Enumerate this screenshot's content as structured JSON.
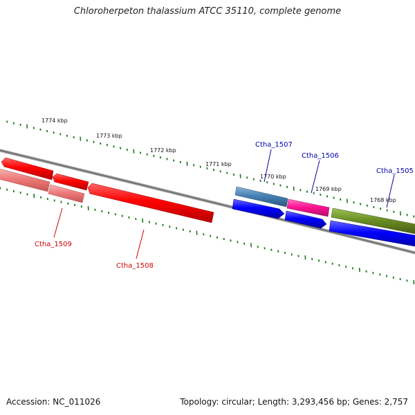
{
  "title": "Chloroherpeton thalassium ATCC 35110, complete genome",
  "footer": {
    "accession": "Accession: NC_011026",
    "summary": "Topology: circular; Length: 3,293,456 bp; Genes: 2,757"
  },
  "colors": {
    "backbone": "#808080",
    "ticks": "#1a7a1a",
    "red_label": "#cc0000",
    "blue_label": "#0000aa"
  },
  "tick_labels": [
    "1774 kbp",
    "1773 kbp",
    "1772 kbp",
    "1771 kbp",
    "1770 kbp",
    "1769 kbp",
    "1768 kbp"
  ],
  "genes": [
    {
      "name": "Ctha_1509",
      "color": "#cc0000"
    },
    {
      "name": "Ctha_1508",
      "color": "#cc0000"
    },
    {
      "name": "Ctha_1507",
      "color": "#0000aa"
    },
    {
      "name": "Ctha_1506",
      "color": "#0000aa"
    },
    {
      "name": "Ctha_1505",
      "color": "#0000aa"
    }
  ]
}
